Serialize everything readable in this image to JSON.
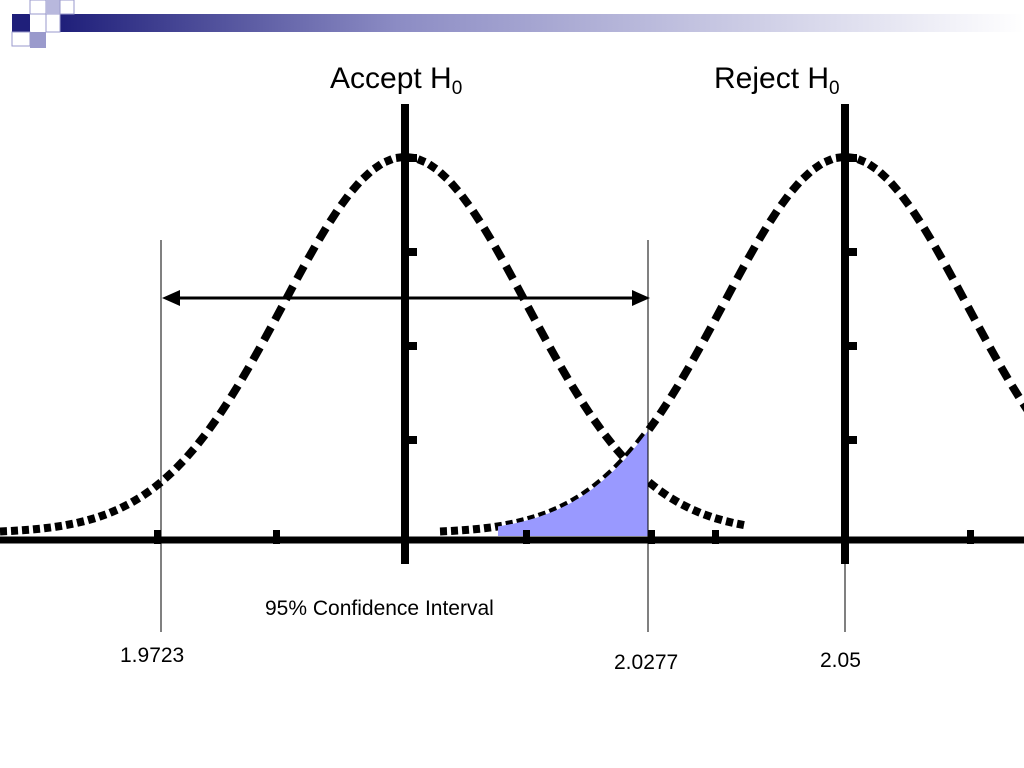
{
  "labels": {
    "accept_text": "Accept H",
    "accept_sub": "0",
    "reject_text": "Reject H",
    "reject_sub": "0",
    "interval": "95% Confidence Interval",
    "lower_bound": "1.9723",
    "upper_bound": "2.0277",
    "alt_mean": "2.05"
  },
  "colors": {
    "curve": "#000000",
    "shaded_region": "#9999ff",
    "banner_dark": "#1f1f7a",
    "banner_mid": "#7f7fbf",
    "banner_light": "#ccccee"
  }
}
